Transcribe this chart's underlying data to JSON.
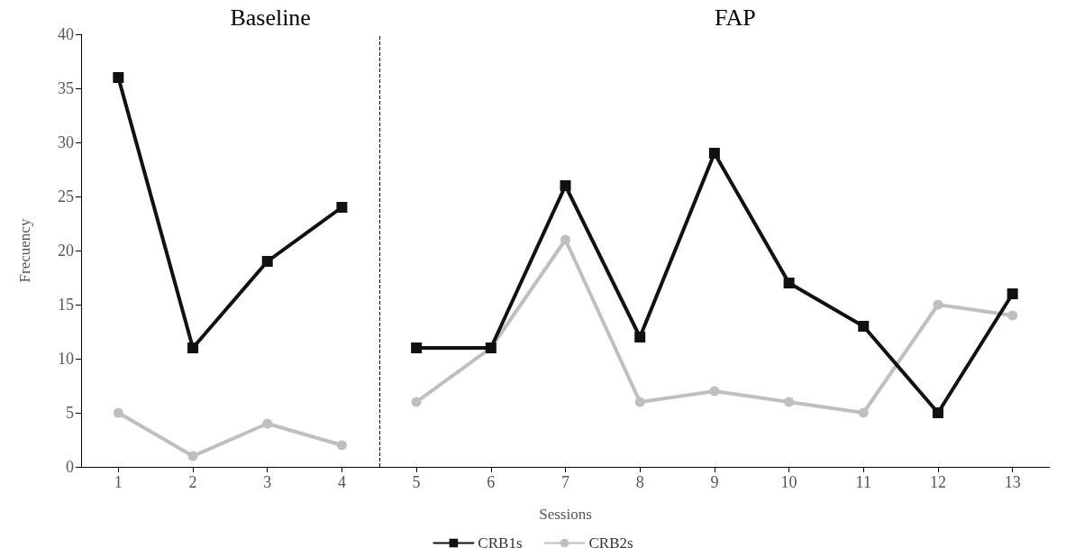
{
  "chart_data": {
    "type": "line",
    "xlabel": "Sessions",
    "ylabel": "Frecuency",
    "x": [
      1,
      2,
      3,
      4,
      5,
      6,
      7,
      8,
      9,
      10,
      11,
      12,
      13
    ],
    "series": [
      {
        "name": "CRB1s",
        "color": "#111111",
        "values": [
          36,
          11,
          19,
          24,
          null,
          null,
          null,
          null,
          null,
          null,
          null,
          null,
          null
        ]
      },
      {
        "color": "#111111",
        "values": [
          null,
          null,
          null,
          null,
          11,
          11,
          26,
          12,
          29,
          17,
          13,
          5,
          16
        ]
      },
      {
        "name": "CRB2s",
        "color": "#bfbfbf",
        "marker": "circle",
        "values": [
          5,
          1,
          4,
          2,
          null,
          null,
          null,
          null,
          null,
          null,
          null,
          null,
          null
        ]
      },
      {
        "color": "#bfbfbf",
        "marker": "circle",
        "values": [
          null,
          null,
          null,
          null,
          6,
          11,
          21,
          6,
          7,
          6,
          5,
          15,
          14
        ]
      }
    ],
    "marker": "square",
    "xlim": [
      0.5,
      13.5
    ],
    "xticks": [
      1,
      2,
      3,
      4,
      5,
      6,
      7,
      8,
      9,
      10,
      11,
      12,
      13
    ],
    "ylim": [
      0,
      40
    ],
    "yticks": [
      0,
      5,
      10,
      15,
      20,
      25,
      30,
      35,
      40
    ],
    "ref_lines": [
      {
        "axis": "x",
        "value": 4.5,
        "line_style": "dashed",
        "color": "#000000"
      }
    ],
    "annotations": [
      "Baseline",
      "FAP"
    ],
    "grid": false,
    "legend": "bottom",
    "line_style": "solid"
  }
}
